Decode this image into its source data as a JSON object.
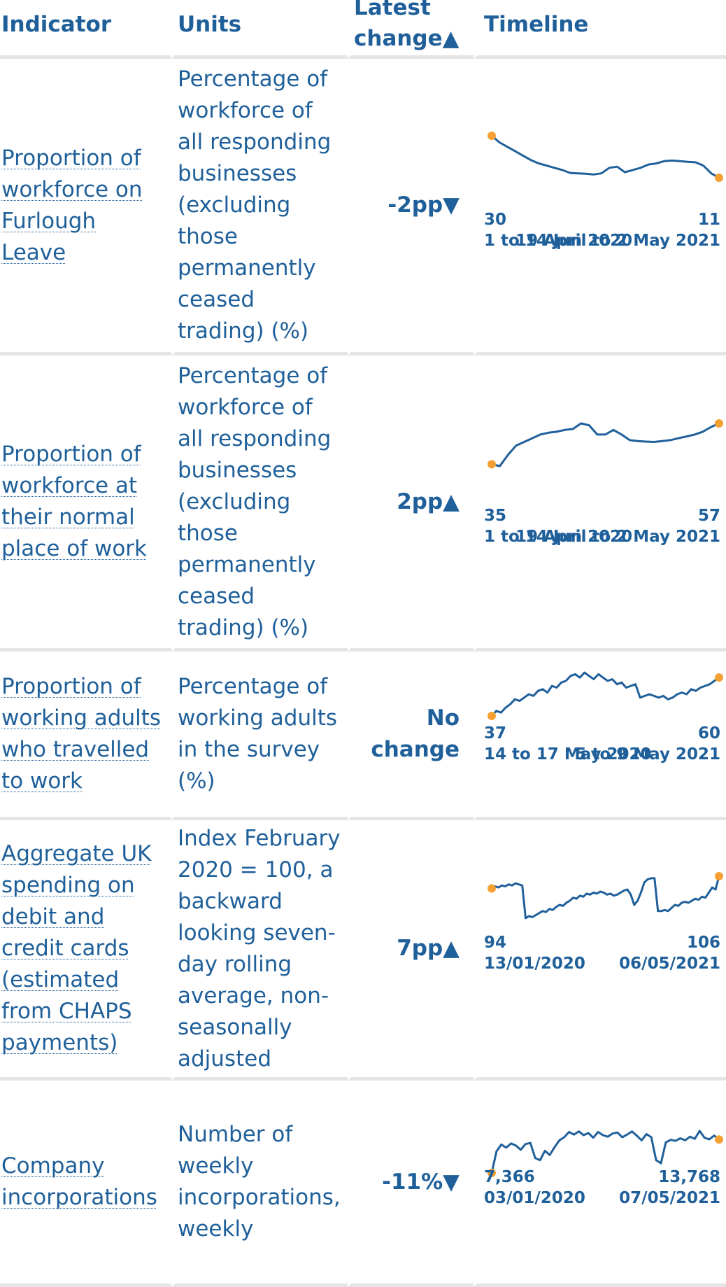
{
  "header": {
    "indicator": "Indicator",
    "units": "Units",
    "latest_change": "Latest change▲",
    "timeline": "Timeline"
  },
  "colors": {
    "text": "#20609a",
    "line": "#20609a",
    "endpoint": "#f5a033",
    "divider": "#e5e5e5"
  },
  "rows": [
    {
      "indicator": "Proportion of workforce on Furlough Leave",
      "units": "Percentage of workforce of all responding businesses (excluding those permanently ceased trading) (%)",
      "change": "-2pp▼",
      "start_value": "30",
      "start_date": "1 to 14 Jun 2020",
      "end_value": "11",
      "end_date": "19 April to 2 May 2021",
      "series": [
        30,
        27,
        25,
        23,
        21,
        19,
        17.5,
        16.5,
        15.5,
        14.5,
        13.2,
        13,
        12.8,
        12.5,
        13,
        15.5,
        16,
        13.5,
        14.5,
        15.5,
        17,
        17.5,
        18.5,
        18.8,
        18.5,
        18.2,
        18,
        16.5,
        13,
        11
      ]
    },
    {
      "indicator": "Proportion of workforce at their normal place of work",
      "units": "Percentage of workforce of all responding businesses (excluding those permanently ceased trading) (%)",
      "change": "2pp▲",
      "start_value": "35",
      "start_date": "1 to 14 Jun 2020",
      "end_value": "57",
      "end_date": "19 April to 2 May 2021",
      "series": [
        35,
        34,
        40,
        45,
        47,
        49,
        51,
        52,
        52.5,
        53.5,
        54,
        57,
        56,
        51,
        51,
        53.5,
        51,
        48,
        47.5,
        47.2,
        47,
        47.5,
        48,
        49,
        50,
        51,
        52.5,
        55,
        57
      ]
    },
    {
      "indicator": "Proportion of working adults who travelled to work",
      "units": "Percentage of working adults in the survey (%)",
      "change": "No change",
      "start_value": "37",
      "start_date": "14 to 17 May 2020",
      "end_value": "60",
      "end_date": "5 to 9 May 2021",
      "series": [
        37,
        40,
        39,
        42,
        44,
        47,
        46,
        48,
        50,
        49,
        52,
        53,
        51,
        55,
        54,
        57,
        58,
        61,
        62,
        60,
        63,
        61,
        59,
        62,
        60,
        58,
        59,
        56,
        57,
        54,
        55,
        56,
        48,
        49,
        50,
        49,
        48,
        49,
        47,
        48,
        50,
        51,
        50,
        53,
        52,
        54,
        55,
        56,
        58,
        60
      ]
    },
    {
      "indicator": "Aggregate UK spending on debit and credit cards (estimated from CHAPS payments)",
      "units": "Index February 2020 = 100, a backward looking seven-day rolling average, non-seasonally adjusted",
      "change": "7pp▲",
      "start_value": "94",
      "start_date": "13/01/2020",
      "end_value": "106",
      "end_date": "06/05/2021",
      "series": [
        94,
        96,
        95,
        97,
        96,
        98,
        97,
        99,
        98,
        97,
        65,
        67,
        66,
        68,
        70,
        72,
        71,
        74,
        73,
        76,
        78,
        77,
        80,
        82,
        85,
        84,
        87,
        86,
        89,
        88,
        90,
        89,
        91,
        90,
        88,
        89,
        87,
        88,
        90,
        92,
        93,
        88,
        78,
        82,
        90,
        100,
        103,
        104,
        104,
        72,
        72,
        73,
        72,
        75,
        78,
        77,
        80,
        81,
        80,
        82,
        84,
        83,
        86,
        85,
        90,
        95,
        93,
        106
      ]
    },
    {
      "indicator": "Company incorporations",
      "units": "Number of weekly incorporations, weekly",
      "change": "-11%▼",
      "start_value": "7,366",
      "start_date": "03/01/2020",
      "end_value": "13,768",
      "end_date": "07/05/2021",
      "series": [
        7366,
        11500,
        12800,
        12200,
        13000,
        12600,
        11800,
        12900,
        13100,
        10200,
        9800,
        11600,
        10800,
        12300,
        13600,
        14200,
        15200,
        14700,
        15300,
        14600,
        15000,
        14100,
        15200,
        14600,
        14300,
        14900,
        15100,
        14200,
        14700,
        15300,
        14500,
        13600,
        14800,
        14200,
        9800,
        9200,
        13200,
        13700,
        13500,
        14000,
        13600,
        14300,
        13900,
        15400,
        14100,
        13800,
        14500,
        13768
      ]
    }
  ]
}
